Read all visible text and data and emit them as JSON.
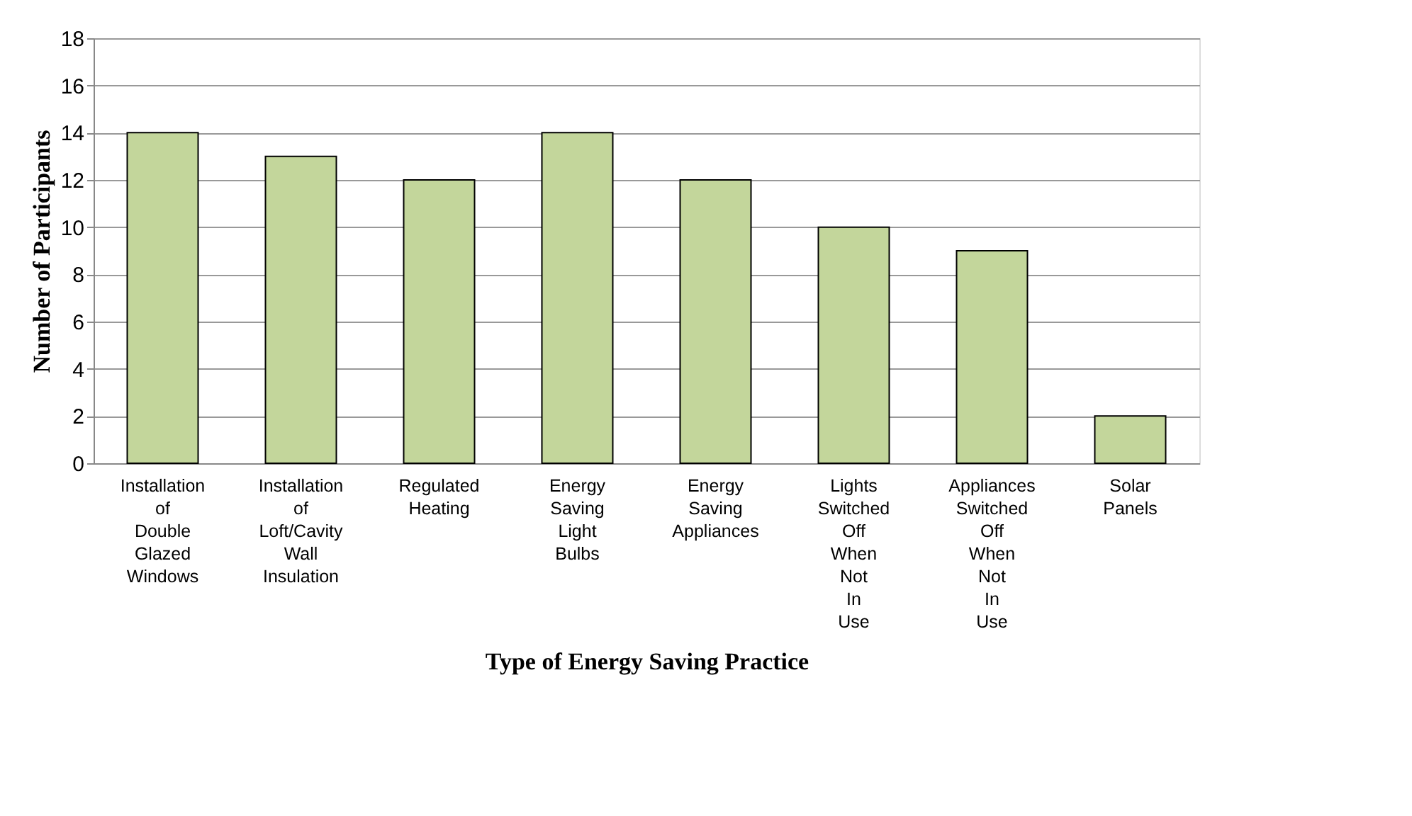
{
  "chart_data": {
    "type": "bar",
    "xlabel": "Type of Energy Saving Practice",
    "ylabel": "Number of Participants",
    "categories": [
      "Installation of Double Glazed Windows",
      "Installation of Loft/Cavity Wall Insulation",
      "Regulated Heating",
      "Energy Saving Light Bulbs",
      "Energy Saving Appliances",
      "Lights Switched Off When Not In Use",
      "Appliances Switched Off When Not In Use",
      "Solar Panels"
    ],
    "values": [
      14,
      13,
      12,
      14,
      12,
      10,
      9,
      2
    ],
    "color": "#c3d69b",
    "ylim": [
      0,
      18
    ],
    "yticks": [
      0,
      2,
      4,
      6,
      8,
      10,
      12,
      14,
      16,
      18
    ],
    "grid": "y"
  }
}
